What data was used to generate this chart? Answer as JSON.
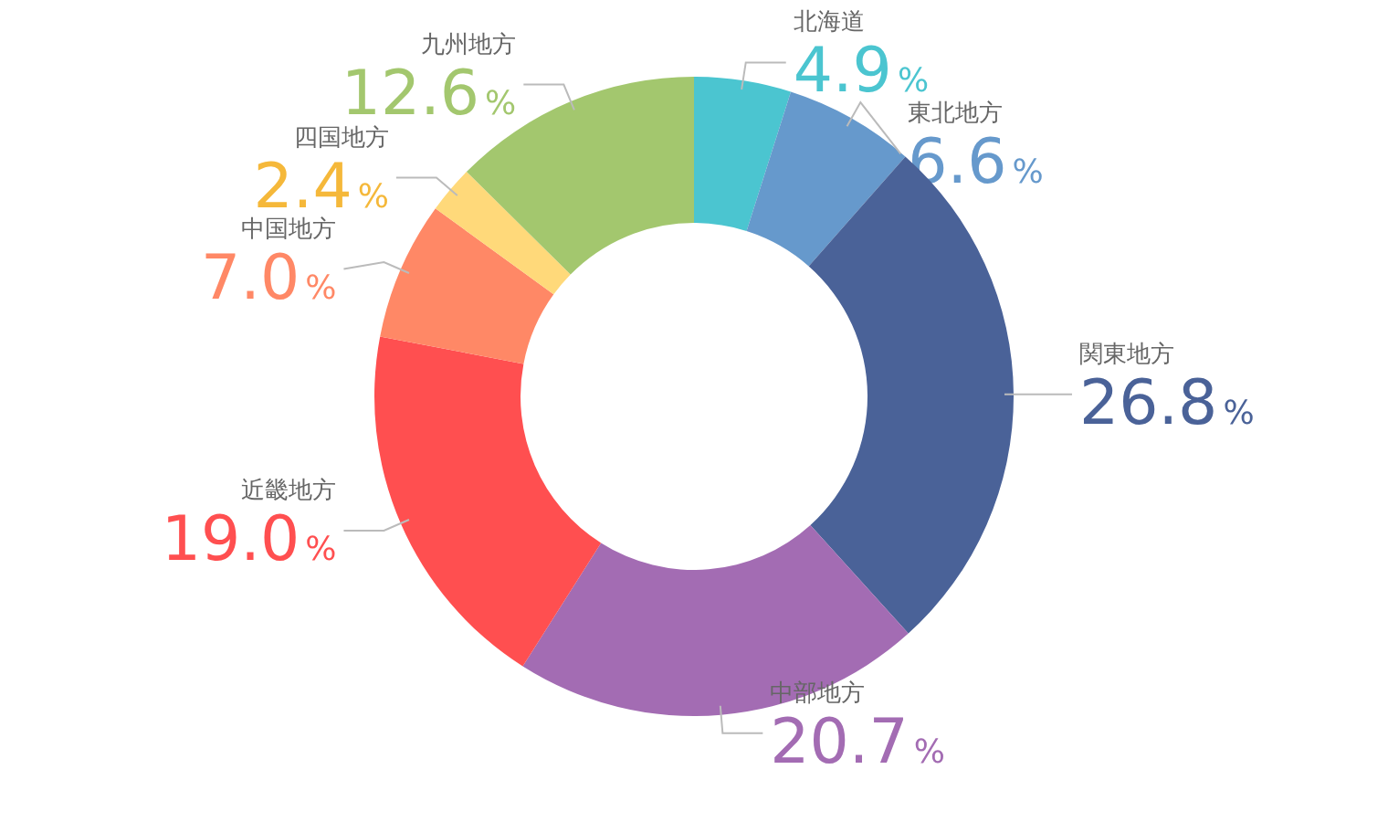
{
  "chart_data": {
    "type": "donut",
    "categories": [
      "北海道",
      "東北地方",
      "関東地方",
      "中部地方",
      "近畿地方",
      "中国地方",
      "四国地方",
      "九州地方"
    ],
    "values": [
      4.9,
      6.6,
      26.8,
      20.7,
      19.0,
      7.0,
      2.4,
      12.6
    ],
    "value_labels": [
      "4.9%",
      "6.6%",
      "26.8%",
      "20.7%",
      "19.0%",
      "7.0%",
      "2.4%",
      "12.6%"
    ],
    "colors": [
      "#4bc5d0",
      "#6699cc",
      "#4a6298",
      "#a36cb3",
      "#ff4f50",
      "#ff8866",
      "#ffd97a",
      "#a3c76e"
    ]
  }
}
